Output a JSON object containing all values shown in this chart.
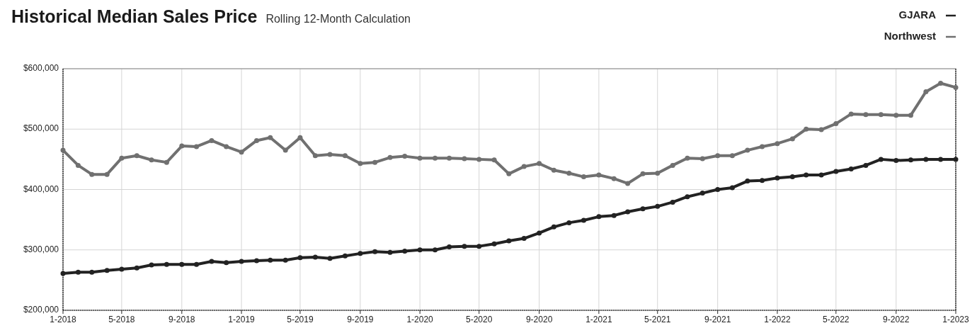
{
  "chart_data": {
    "type": "line",
    "title": "Historical Median Sales Price",
    "subtitle": "Rolling 12-Month Calculation",
    "x": [
      "2018-01",
      "2018-02",
      "2018-03",
      "2018-04",
      "2018-05",
      "2018-06",
      "2018-07",
      "2018-08",
      "2018-09",
      "2018-10",
      "2018-11",
      "2018-12",
      "2019-01",
      "2019-02",
      "2019-03",
      "2019-04",
      "2019-05",
      "2019-06",
      "2019-07",
      "2019-08",
      "2019-09",
      "2019-10",
      "2019-11",
      "2019-12",
      "2020-01",
      "2020-02",
      "2020-03",
      "2020-04",
      "2020-05",
      "2020-06",
      "2020-07",
      "2020-08",
      "2020-09",
      "2020-10",
      "2020-11",
      "2020-12",
      "2021-01",
      "2021-02",
      "2021-03",
      "2021-04",
      "2021-05",
      "2021-06",
      "2021-07",
      "2021-08",
      "2021-09",
      "2021-10",
      "2021-11",
      "2021-12",
      "2022-01",
      "2022-02",
      "2022-03",
      "2022-04",
      "2022-05",
      "2022-06",
      "2022-07",
      "2022-08",
      "2022-09",
      "2022-10",
      "2022-11",
      "2022-12",
      "2023-01"
    ],
    "series": [
      {
        "name": "GJARA",
        "color": "#222222",
        "values": [
          261000,
          263000,
          263000,
          266000,
          268000,
          270000,
          275000,
          276000,
          276000,
          276000,
          281000,
          279000,
          281000,
          282000,
          283000,
          283000,
          287000,
          288000,
          286000,
          290000,
          294000,
          297000,
          296000,
          298000,
          300000,
          300000,
          305000,
          306000,
          306000,
          310000,
          315000,
          319000,
          328000,
          338000,
          345000,
          349000,
          355000,
          357000,
          363000,
          368000,
          372000,
          379000,
          388000,
          394000,
          400000,
          403000,
          414000,
          415000,
          419000,
          421000,
          424000,
          424000,
          430000,
          434000,
          440000,
          450000,
          448000,
          449000,
          450000,
          450000,
          450000
        ]
      },
      {
        "name": "Northwest",
        "color": "#707070",
        "values": [
          465000,
          440000,
          425000,
          425000,
          452000,
          456000,
          449000,
          445000,
          472000,
          471000,
          481000,
          471000,
          462000,
          481000,
          486000,
          465000,
          486000,
          456000,
          458000,
          456000,
          443000,
          445000,
          453000,
          455000,
          452000,
          452000,
          452000,
          451000,
          450000,
          449000,
          426000,
          438000,
          443000,
          432000,
          427000,
          421000,
          424000,
          418000,
          410000,
          426000,
          427000,
          440000,
          452000,
          451000,
          456000,
          456000,
          465000,
          471000,
          476000,
          484000,
          500000,
          499000,
          509000,
          525000,
          524000,
          524000,
          523000,
          523000,
          562000,
          576000,
          569000
        ]
      }
    ],
    "xlim": [
      "2018-01",
      "2023-01"
    ],
    "xticks": [
      {
        "value": "2018-01",
        "label": "1-2018"
      },
      {
        "value": "2018-05",
        "label": "5-2018"
      },
      {
        "value": "2018-09",
        "label": "9-2018"
      },
      {
        "value": "2019-01",
        "label": "1-2019"
      },
      {
        "value": "2019-05",
        "label": "5-2019"
      },
      {
        "value": "2019-09",
        "label": "9-2019"
      },
      {
        "value": "2020-01",
        "label": "1-2020"
      },
      {
        "value": "2020-05",
        "label": "5-2020"
      },
      {
        "value": "2020-09",
        "label": "9-2020"
      },
      {
        "value": "2021-01",
        "label": "1-2021"
      },
      {
        "value": "2021-05",
        "label": "5-2021"
      },
      {
        "value": "2021-09",
        "label": "9-2021"
      },
      {
        "value": "2022-01",
        "label": "1-2022"
      },
      {
        "value": "2022-05",
        "label": "5-2022"
      },
      {
        "value": "2022-09",
        "label": "9-2022"
      },
      {
        "value": "2023-01",
        "label": "1-2023"
      }
    ],
    "ylim": [
      200000,
      600000
    ],
    "yticks": [
      {
        "value": 200000,
        "label": "$200,000"
      },
      {
        "value": 300000,
        "label": "$300,000"
      },
      {
        "value": 400000,
        "label": "$400,000"
      },
      {
        "value": 500000,
        "label": "$500,000"
      },
      {
        "value": 600000,
        "label": "$600,000"
      }
    ],
    "grid": true,
    "legend": "top right",
    "marker": "circle",
    "line_style": "solid"
  }
}
